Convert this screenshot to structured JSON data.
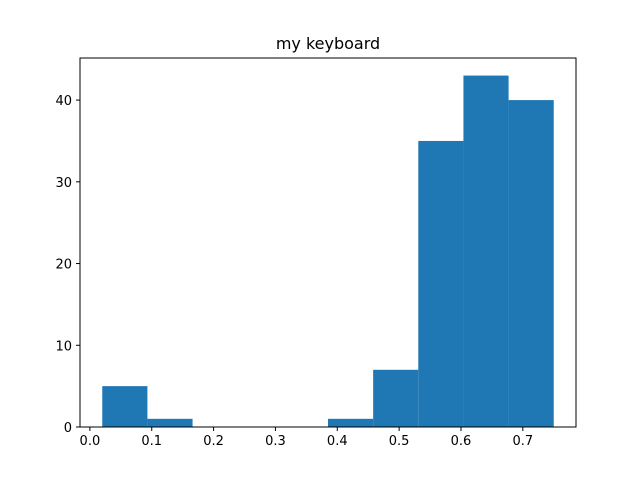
{
  "chart_data": {
    "type": "bar",
    "title": "my keyboard",
    "xlabel": "",
    "ylabel": "",
    "bins": [
      {
        "x0": 0.02,
        "x1": 0.093,
        "count": 5
      },
      {
        "x0": 0.093,
        "x1": 0.166,
        "count": 1
      },
      {
        "x0": 0.166,
        "x1": 0.239,
        "count": 0
      },
      {
        "x0": 0.239,
        "x1": 0.312,
        "count": 0
      },
      {
        "x0": 0.312,
        "x1": 0.385,
        "count": 0
      },
      {
        "x0": 0.385,
        "x1": 0.458,
        "count": 1
      },
      {
        "x0": 0.458,
        "x1": 0.531,
        "count": 7
      },
      {
        "x0": 0.531,
        "x1": 0.604,
        "count": 35
      },
      {
        "x0": 0.604,
        "x1": 0.677,
        "count": 43
      },
      {
        "x0": 0.677,
        "x1": 0.75,
        "count": 40
      }
    ],
    "xlim": [
      -0.016,
      0.786
    ],
    "ylim": [
      0,
      45.15
    ],
    "xticks": [
      0.0,
      0.1,
      0.2,
      0.3,
      0.4,
      0.5,
      0.6,
      0.7
    ],
    "xtick_labels": [
      "0.0",
      "0.1",
      "0.2",
      "0.3",
      "0.4",
      "0.5",
      "0.6",
      "0.7"
    ],
    "yticks": [
      0,
      10,
      20,
      30,
      40
    ],
    "ytick_labels": [
      "0",
      "10",
      "20",
      "30",
      "40"
    ],
    "grid": false,
    "bar_color": "#1f77b4"
  }
}
